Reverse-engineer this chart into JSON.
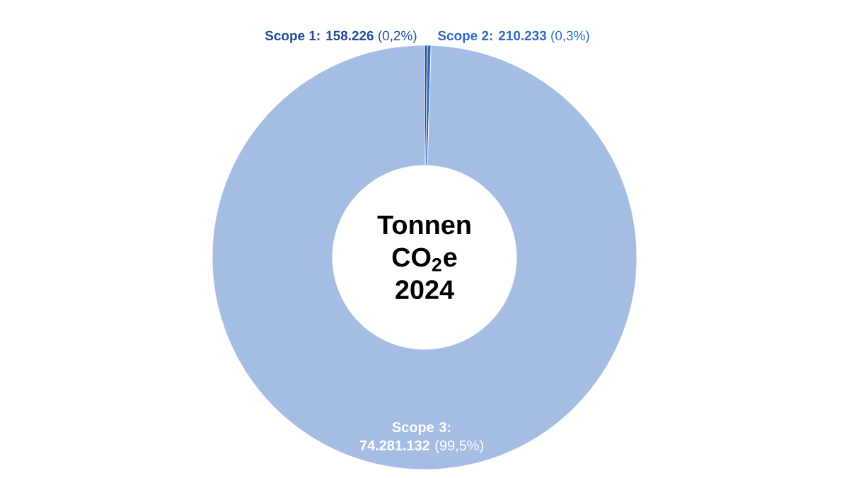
{
  "chart_data": {
    "type": "donut",
    "title": "Tonnen CO$_{2}$e 2024",
    "categories": [
      "Scope 1",
      "Scope 2",
      "Scope 3"
    ],
    "values": [
      158226,
      210233,
      74281132
    ],
    "colors": [
      "#1f4e96",
      "#2f6cc0",
      "#a6bde3"
    ],
    "value_labels": [
      "**: 158.226** (0,2%)",
      "**: 210.233** (0,3%)",
      "**: 74.281.132** (99,5%)"
    ]
  }
}
